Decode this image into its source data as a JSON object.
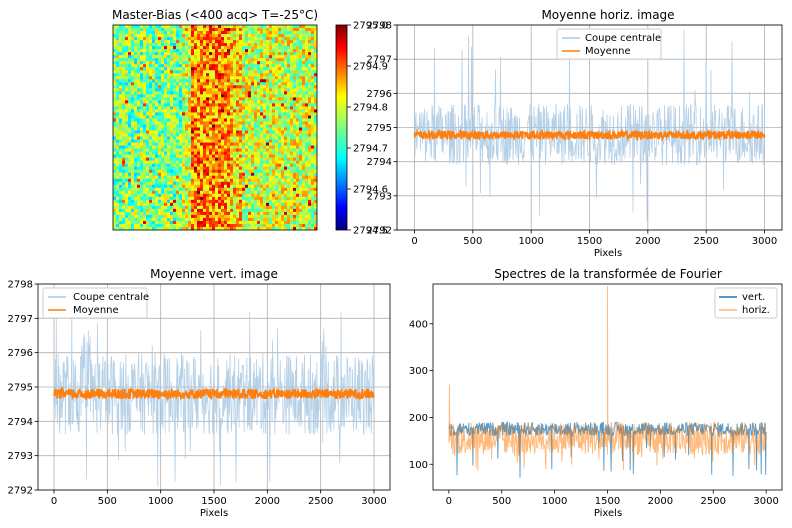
{
  "colors": {
    "cut": "#a9c9e3",
    "mean": "#ff7f0e",
    "vert": "#1f77b4",
    "horiz": "#ff7f0e",
    "grid": "#b0b0b0"
  },
  "chart_data": [
    {
      "id": "image",
      "type": "heatmap",
      "title": "Master-Bias (<400 acq> T=-25°C)",
      "colormap": "jet",
      "colorbar_range": [
        2794.5,
        2795.0
      ],
      "colorbar_ticks": [
        "2795.0",
        "2794.9",
        "2794.8",
        "2794.7",
        "2794.6",
        "2794.5"
      ],
      "notes": [
        "Mostly green-yellow noise",
        "Left third slightly lower (cyan)",
        "Central vertical band higher (orange-red)"
      ]
    },
    {
      "id": "horiz",
      "type": "line",
      "title": "Moyenne horiz. image",
      "xlabel": "Pixels",
      "ylabel": "",
      "xlim": [
        -150,
        3150
      ],
      "ylim": [
        2792,
        2798
      ],
      "xticks": [
        0,
        500,
        1000,
        1500,
        2000,
        2500,
        3000
      ],
      "yticks": [
        2792,
        2793,
        2794,
        2795,
        2796,
        2797,
        2798
      ],
      "grid": true,
      "legend_position": "upper-center",
      "series": [
        {
          "name": "Coupe centrale",
          "noise_center": 2794.8,
          "noise_band": [
            2794.0,
            2795.8
          ],
          "spike_range": [
            2792.1,
            2797.9
          ]
        },
        {
          "name": "Moyenne",
          "values_center": 2794.78,
          "band": [
            2794.65,
            2794.9
          ]
        }
      ]
    },
    {
      "id": "vert",
      "type": "line",
      "title": "Moyenne vert. image",
      "xlabel": "Pixels",
      "ylabel": "",
      "xlim": [
        -150,
        3150
      ],
      "ylim": [
        2792,
        2798
      ],
      "xticks": [
        0,
        500,
        1000,
        1500,
        2000,
        2500,
        3000
      ],
      "yticks": [
        2792,
        2793,
        2794,
        2795,
        2796,
        2797,
        2798
      ],
      "grid": true,
      "legend_position": "upper-left",
      "series": [
        {
          "name": "Coupe centrale",
          "noise_center": 2794.8,
          "noise_band": [
            2793.6,
            2796.0
          ],
          "spike_range": [
            2792.1,
            2797.2
          ]
        },
        {
          "name": "Moyenne",
          "values_center": 2794.8,
          "band": [
            2794.65,
            2794.95
          ]
        }
      ]
    },
    {
      "id": "fft",
      "type": "line",
      "title": "Spectres de la transformée de Fourier",
      "xlabel": "Pixels",
      "ylabel": "",
      "xlim": [
        -150,
        3150
      ],
      "ylim": [
        45,
        485
      ],
      "xticks": [
        0,
        500,
        1000,
        1500,
        2000,
        2500,
        3000
      ],
      "yticks": [
        100,
        200,
        300,
        400
      ],
      "grid": false,
      "legend_position": "upper-right",
      "series": [
        {
          "name": "vert.",
          "noise_band": [
            160,
            190
          ],
          "dips_to": 70
        },
        {
          "name": "horiz.",
          "noise_band": [
            120,
            190
          ],
          "dips_to": 85,
          "peaks": [
            {
              "x": 0,
              "y": 270
            },
            {
              "x": 1500,
              "y": 480
            }
          ]
        }
      ]
    }
  ]
}
